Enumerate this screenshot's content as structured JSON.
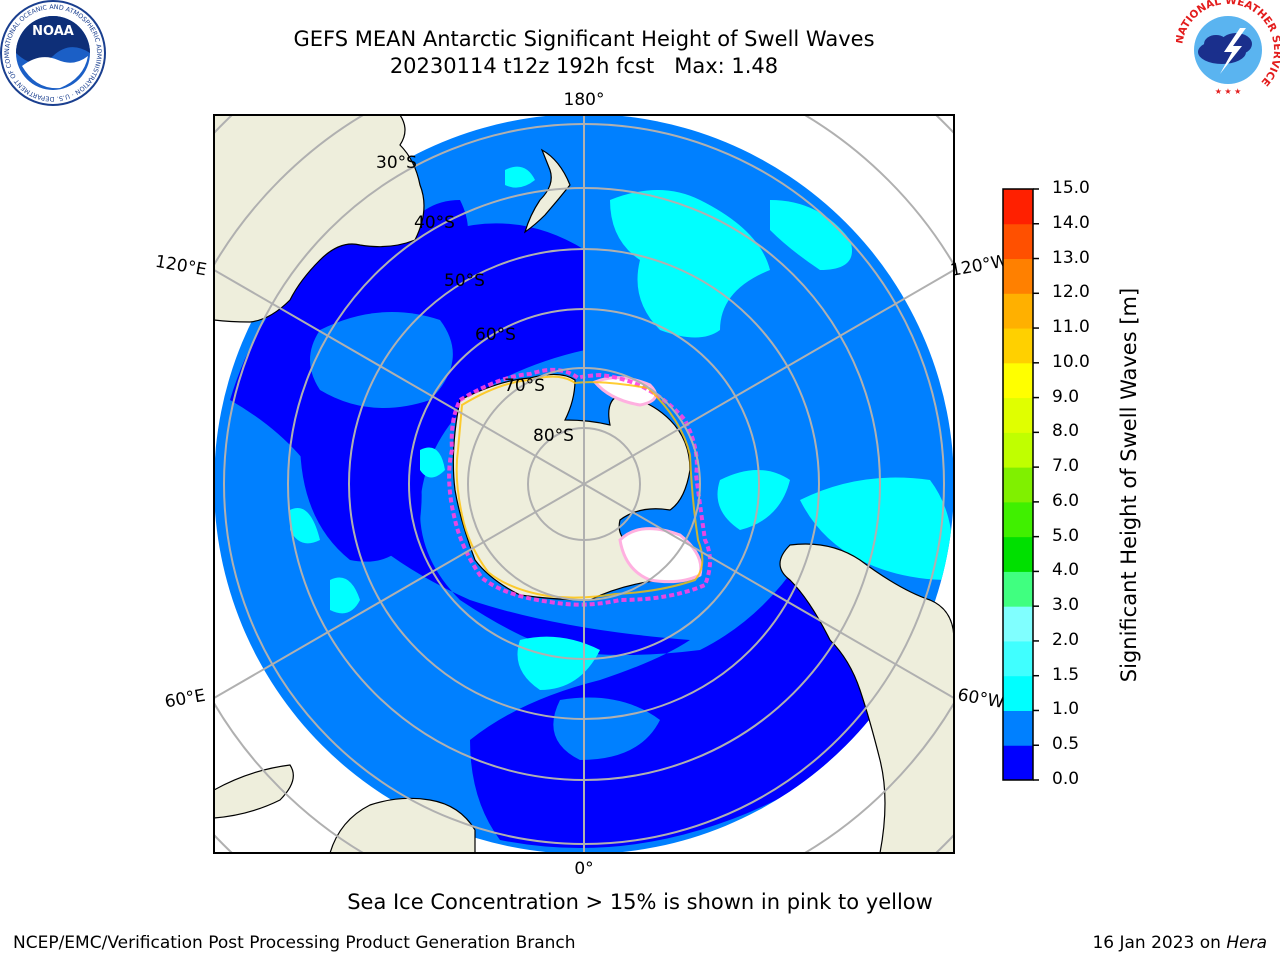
{
  "header": {
    "title_line1": "GEFS MEAN Antarctic Significant Height of Swell Waves",
    "title_line2": "20230114 t12z 192h fcst   Max: 1.48"
  },
  "map": {
    "projection": "south-polar-stereographic",
    "longitude_labels": {
      "top": "180°",
      "bottom": "0°",
      "upper_left": "120°E",
      "upper_right": "120°W",
      "lower_left": "60°E",
      "lower_right": "60°W"
    },
    "latitude_labels": [
      "30°S",
      "40°S",
      "50°S",
      "60°S",
      "70°S",
      "80°S"
    ],
    "colors": {
      "land": "#eeeedc",
      "ocean_base": "#0080ff",
      "grid": "#b0b0b0",
      "sea_ice_high": "#ffffff",
      "sea_ice_edge": "#ff40e0"
    },
    "field_max": 1.48
  },
  "colorbar": {
    "label": "Significant Height of Swell Waves [m]",
    "ticks": [
      "0.0",
      "0.5",
      "1.0",
      "1.5",
      "2.0",
      "3.0",
      "4.0",
      "5.0",
      "6.0",
      "7.0",
      "8.0",
      "9.0",
      "10.0",
      "11.0",
      "12.0",
      "13.0",
      "14.0",
      "15.0"
    ],
    "colors": [
      "#0000ff",
      "#0080ff",
      "#00ffff",
      "#40ffff",
      "#80ffff",
      "#40ff80",
      "#00e000",
      "#40f000",
      "#80f000",
      "#c0ff00",
      "#e0ff00",
      "#ffff00",
      "#ffd000",
      "#ffb000",
      "#ff8000",
      "#ff5000",
      "#ff2000"
    ]
  },
  "footer": {
    "subtitle": "Sea Ice Concentration > 15% is shown in pink to yellow",
    "credit": "NCEP/EMC/Verification Post Processing Product Generation Branch",
    "date_prefix": "16 Jan 2023 on",
    "system_name": "Hera"
  },
  "logos": {
    "left": {
      "icon": "noaa-logo-icon",
      "text": "NOAA",
      "ring_text": "NATIONAL OCEANIC AND ATMOSPHERIC ADMINISTRATION · U.S. DEPARTMENT OF COMMERCE"
    },
    "right": {
      "icon": "national-weather-service-logo-icon",
      "ring_text": "NATIONAL WEATHER SERVICE"
    }
  }
}
